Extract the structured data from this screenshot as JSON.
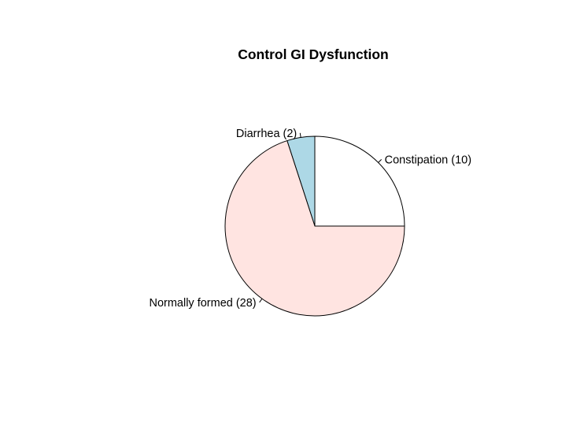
{
  "chart_data": {
    "type": "pie",
    "title": "Control GI Dysfunction",
    "start_angle_deg": 0,
    "direction": "counterclockwise",
    "slices": [
      {
        "label": "Constipation (10)",
        "value": 10,
        "color": "#ffffff"
      },
      {
        "label": "Diarrhea (2)",
        "value": 2,
        "color": "#add8e6"
      },
      {
        "label": "Normally formed (28)",
        "value": 28,
        "color": "#ffe4e1"
      }
    ],
    "border_color": "#000000",
    "grid": false,
    "legend": "none"
  }
}
